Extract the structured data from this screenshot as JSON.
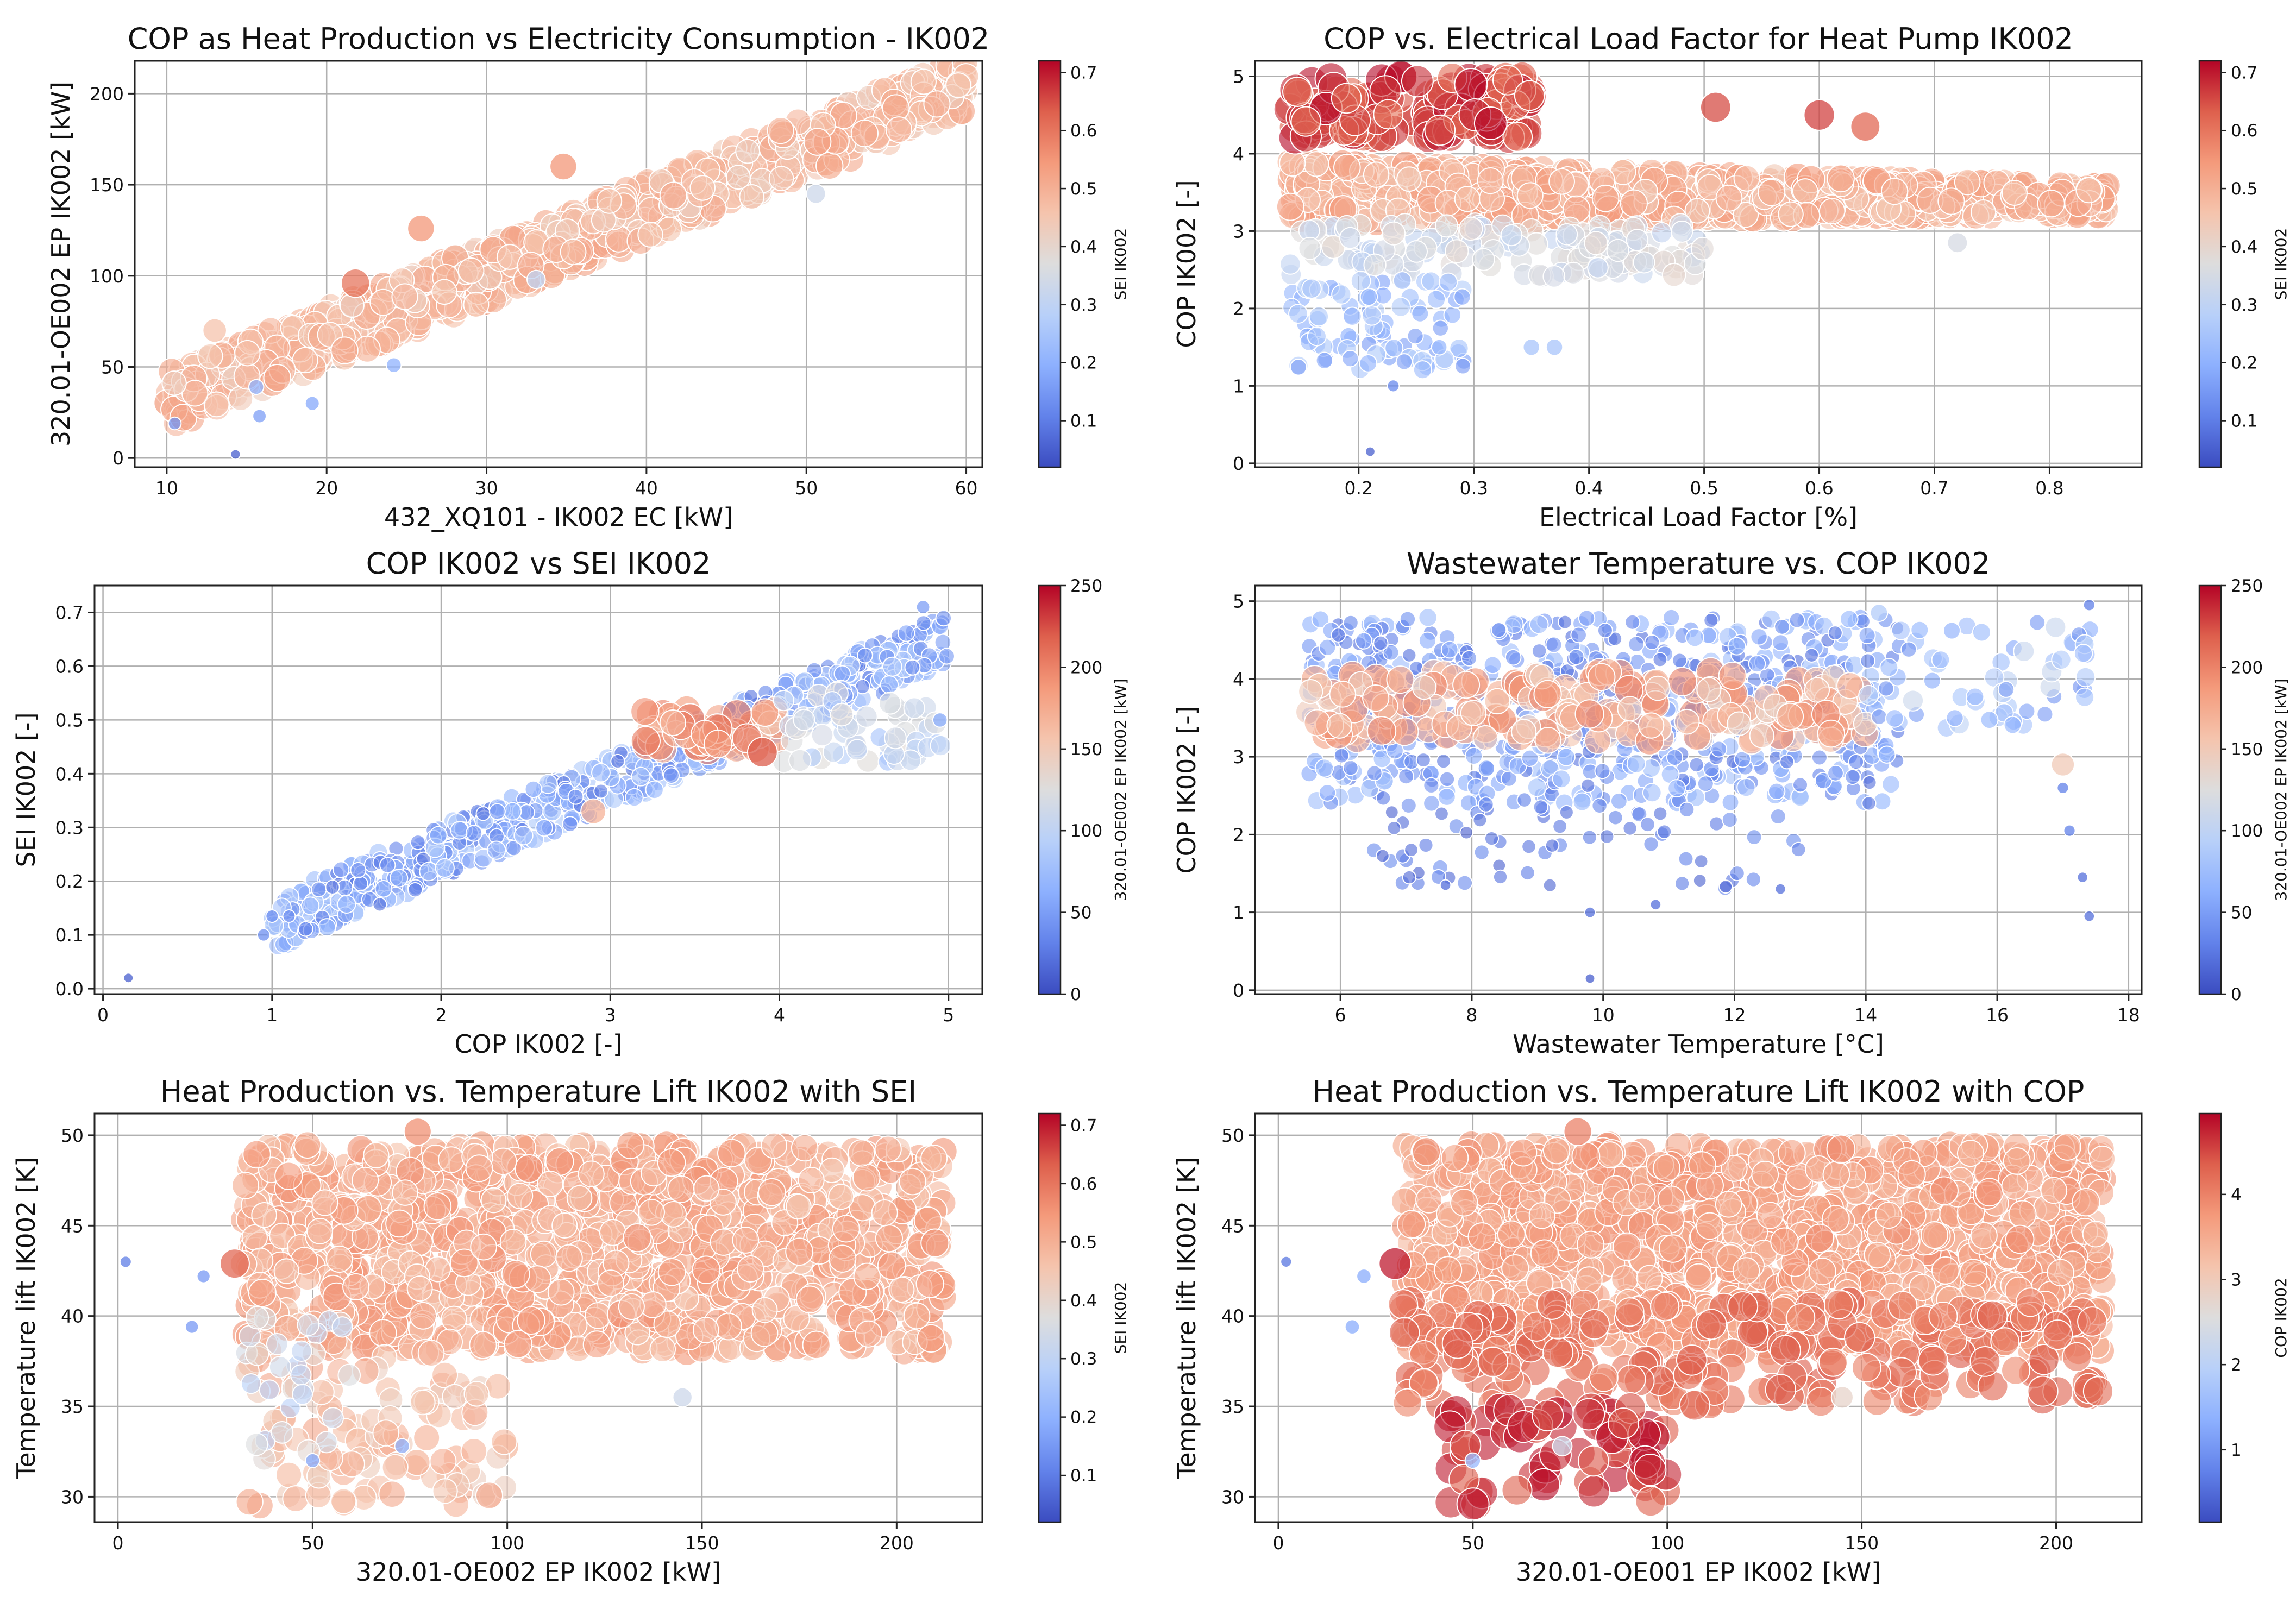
{
  "chart_data": [
    {
      "type": "scatter",
      "title": "COP as Heat Production vs Electricity Consumption - IK002",
      "xlabel": "432_XQ101 - IK002 EC [kW]",
      "ylabel": "320.01-OE002 EP IK002 [kW]",
      "xlim": [
        8,
        61
      ],
      "ylim": [
        -5,
        218
      ],
      "xticks": [
        10,
        20,
        30,
        40,
        50,
        60
      ],
      "yticks": [
        0,
        50,
        100,
        150,
        200
      ],
      "grid": true,
      "colorbar": {
        "label": "SEI IK002",
        "range": [
          0.02,
          0.72
        ],
        "ticks": [
          0.1,
          0.2,
          0.3,
          0.4,
          0.5,
          0.6,
          0.7
        ],
        "cmap": "coolwarm"
      },
      "clusters": [
        {
          "x": [
            10,
            60
          ],
          "y": [
            32,
            205
          ],
          "y_spread": 16,
          "c": [
            0.42,
            0.53
          ],
          "n": 900
        }
      ],
      "points": [
        {
          "x": 10.5,
          "y": 19,
          "c": 0.14
        },
        {
          "x": 14.3,
          "y": 2,
          "c": 0.05
        },
        {
          "x": 15.6,
          "y": 39,
          "c": 0.2
        },
        {
          "x": 15.8,
          "y": 23,
          "c": 0.16
        },
        {
          "x": 19.1,
          "y": 30,
          "c": 0.18
        },
        {
          "x": 24.2,
          "y": 51,
          "c": 0.2
        },
        {
          "x": 25.9,
          "y": 126,
          "c": 0.55
        },
        {
          "x": 33.1,
          "y": 98,
          "c": 0.3
        },
        {
          "x": 50.6,
          "y": 145,
          "c": 0.33
        },
        {
          "x": 21.8,
          "y": 96,
          "c": 0.6
        },
        {
          "x": 34.8,
          "y": 160,
          "c": 0.55
        },
        {
          "x": 13.0,
          "y": 70,
          "c": 0.46
        }
      ]
    },
    {
      "type": "scatter",
      "title": "COP vs. Electrical Load Factor for Heat Pump IK002",
      "xlabel": "Electrical Load Factor [%]",
      "ylabel": "COP IK002 [-]",
      "xlim": [
        0.11,
        0.88
      ],
      "ylim": [
        -0.05,
        5.2
      ],
      "xticks": [
        0.2,
        0.3,
        0.4,
        0.5,
        0.6,
        0.7,
        0.8
      ],
      "yticks": [
        0,
        1,
        2,
        3,
        4,
        5
      ],
      "grid": true,
      "colorbar": {
        "label": "SEI IK002",
        "range": [
          0.02,
          0.72
        ],
        "ticks": [
          0.1,
          0.2,
          0.3,
          0.4,
          0.5,
          0.6,
          0.7
        ],
        "cmap": "coolwarm"
      },
      "clusters": [
        {
          "x": [
            0.14,
            0.85
          ],
          "y": [
            3.1,
            3.9
          ],
          "y_end": [
            3.2,
            3.6
          ],
          "c": [
            0.44,
            0.55
          ],
          "n": 1000
        },
        {
          "x": [
            0.14,
            0.35
          ],
          "y": [
            4.2,
            5.0
          ],
          "c": [
            0.6,
            0.72
          ],
          "n": 160
        },
        {
          "x": [
            0.14,
            0.5
          ],
          "y": [
            2.4,
            3.1
          ],
          "c": [
            0.3,
            0.4
          ],
          "n": 160
        },
        {
          "x": [
            0.14,
            0.3
          ],
          "y": [
            1.2,
            2.4
          ],
          "c": [
            0.15,
            0.28
          ],
          "n": 90
        }
      ],
      "points": [
        {
          "x": 0.21,
          "y": 0.15,
          "c": 0.05
        },
        {
          "x": 0.23,
          "y": 1.0,
          "c": 0.12
        },
        {
          "x": 0.35,
          "y": 1.5,
          "c": 0.25
        },
        {
          "x": 0.37,
          "y": 1.5,
          "c": 0.25
        },
        {
          "x": 0.27,
          "y": 1.5,
          "c": 0.22
        },
        {
          "x": 0.6,
          "y": 4.5,
          "c": 0.66
        },
        {
          "x": 0.64,
          "y": 4.35,
          "c": 0.62
        },
        {
          "x": 0.51,
          "y": 4.6,
          "c": 0.65
        },
        {
          "x": 0.72,
          "y": 2.85,
          "c": 0.35
        }
      ]
    },
    {
      "type": "scatter",
      "title": "COP IK002 vs SEI IK002",
      "xlabel": "COP IK002 [-]",
      "ylabel": "SEI IK002 [-]",
      "xlim": [
        -0.05,
        5.2
      ],
      "ylim": [
        -0.01,
        0.75
      ],
      "xticks": [
        0,
        1,
        2,
        3,
        4,
        5
      ],
      "yticks": [
        0.0,
        0.1,
        0.2,
        0.3,
        0.4,
        0.5,
        0.6,
        0.7
      ],
      "grid": true,
      "colorbar": {
        "label": "320.01-OE002 EP IK002 [kW]",
        "range": [
          0,
          250
        ],
        "ticks": [
          0,
          50,
          100,
          150,
          200,
          250
        ],
        "cmap": "coolwarm"
      },
      "clusters": [
        {
          "x": [
            1.0,
            5.0
          ],
          "y": [
            0.12,
            0.65
          ],
          "y_spread": 0.05,
          "c": [
            20,
            90
          ],
          "n": 700
        },
        {
          "x": [
            3.2,
            4.0
          ],
          "y": [
            0.44,
            0.52
          ],
          "c": [
            150,
            210
          ],
          "n": 60
        },
        {
          "x": [
            4.0,
            5.0
          ],
          "y": [
            0.42,
            0.55
          ],
          "c": [
            80,
            130
          ],
          "n": 60
        }
      ],
      "points": [
        {
          "x": 0.15,
          "y": 0.02,
          "c": 10
        },
        {
          "x": 0.95,
          "y": 0.1,
          "c": 40
        },
        {
          "x": 1.0,
          "y": 0.135,
          "c": 40
        },
        {
          "x": 1.1,
          "y": 0.135,
          "c": 40
        },
        {
          "x": 2.9,
          "y": 0.33,
          "c": 170
        },
        {
          "x": 3.9,
          "y": 0.44,
          "c": 220
        },
        {
          "x": 4.95,
          "y": 0.5,
          "c": 60
        },
        {
          "x": 4.85,
          "y": 0.71,
          "c": 50
        }
      ]
    },
    {
      "type": "scatter",
      "title": "Wastewater Temperature vs. COP IK002",
      "xlabel": "Wastewater Temperature [°C]",
      "ylabel": "COP IK002 [-]",
      "xlim": [
        4.7,
        18.2
      ],
      "ylim": [
        -0.05,
        5.2
      ],
      "xticks": [
        6,
        8,
        10,
        12,
        14,
        16,
        18
      ],
      "yticks": [
        0,
        1,
        2,
        3,
        4,
        5
      ],
      "grid": true,
      "colorbar": {
        "label": "320.01-OE002 EP IK002 [kW]",
        "range": [
          0,
          250
        ],
        "ticks": [
          0,
          50,
          100,
          150,
          200,
          250
        ],
        "cmap": "coolwarm"
      },
      "clusters": [
        {
          "x": [
            5.5,
            14.5
          ],
          "y": [
            2.4,
            4.8
          ],
          "c": [
            20,
            80
          ],
          "n": 700
        },
        {
          "x": [
            5.5,
            14.0
          ],
          "y": [
            3.2,
            4.1
          ],
          "c": [
            140,
            200
          ],
          "n": 220
        },
        {
          "x": [
            6.5,
            13.0
          ],
          "y": [
            1.3,
            2.4
          ],
          "c": [
            10,
            40
          ],
          "n": 70
        },
        {
          "x": [
            14.0,
            17.5
          ],
          "y": [
            3.3,
            4.8
          ],
          "c": [
            40,
            110
          ],
          "n": 60
        }
      ],
      "points": [
        {
          "x": 9.8,
          "y": 0.15,
          "c": 10
        },
        {
          "x": 9.8,
          "y": 1.0,
          "c": 20
        },
        {
          "x": 10.8,
          "y": 1.1,
          "c": 20
        },
        {
          "x": 17.4,
          "y": 0.95,
          "c": 20
        },
        {
          "x": 17.3,
          "y": 1.45,
          "c": 20
        },
        {
          "x": 17.0,
          "y": 2.9,
          "c": 150
        },
        {
          "x": 17.0,
          "y": 2.6,
          "c": 30
        },
        {
          "x": 17.1,
          "y": 2.05,
          "c": 30
        },
        {
          "x": 17.4,
          "y": 4.95,
          "c": 30
        },
        {
          "x": 14.2,
          "y": 4.85,
          "c": 90
        },
        {
          "x": 7.6,
          "y": 1.35,
          "c": 20
        },
        {
          "x": 12.7,
          "y": 1.3,
          "c": 20
        }
      ]
    },
    {
      "type": "scatter",
      "title": "Heat Production vs. Temperature Lift IK002 with SEI",
      "xlabel": "320.01-OE002 EP IK002 [kW]",
      "ylabel": "Temperature lift IK002 [K]",
      "xlim": [
        -6,
        222
      ],
      "ylim": [
        28.6,
        51.2
      ],
      "xticks": [
        0,
        50,
        100,
        150,
        200
      ],
      "yticks": [
        30,
        35,
        40,
        45,
        50
      ],
      "grid": true,
      "colorbar": {
        "label": "SEI IK002",
        "range": [
          0.02,
          0.72
        ],
        "ticks": [
          0.1,
          0.2,
          0.3,
          0.4,
          0.5,
          0.6,
          0.7
        ],
        "cmap": "coolwarm"
      },
      "clusters": [
        {
          "x": [
            32,
            212
          ],
          "y": [
            38,
            49.5
          ],
          "c": [
            0.45,
            0.56
          ],
          "n": 1300
        },
        {
          "x": [
            32,
            100
          ],
          "y": [
            29.5,
            38
          ],
          "c": [
            0.42,
            0.52
          ],
          "n": 110
        },
        {
          "x": [
            32,
            60
          ],
          "y": [
            32,
            40
          ],
          "c": [
            0.28,
            0.4
          ],
          "n": 30
        }
      ],
      "points": [
        {
          "x": 2,
          "y": 43,
          "c": 0.1
        },
        {
          "x": 19,
          "y": 39.4,
          "c": 0.15
        },
        {
          "x": 22,
          "y": 42.2,
          "c": 0.15
        },
        {
          "x": 30,
          "y": 42.9,
          "c": 0.62
        },
        {
          "x": 50,
          "y": 32,
          "c": 0.18
        },
        {
          "x": 73,
          "y": 32.8,
          "c": 0.2
        },
        {
          "x": 145,
          "y": 35.5,
          "c": 0.33
        },
        {
          "x": 77,
          "y": 50.2,
          "c": 0.56
        }
      ]
    },
    {
      "type": "scatter",
      "title": "Heat Production vs. Temperature Lift IK002 with COP",
      "xlabel": "320.01-OE001 EP IK002 [kW]",
      "ylabel": "Temperature lift IK002 [K]",
      "xlim": [
        -6,
        222
      ],
      "ylim": [
        28.6,
        51.2
      ],
      "xticks": [
        0,
        50,
        100,
        150,
        200
      ],
      "yticks": [
        30,
        35,
        40,
        45,
        50
      ],
      "grid": true,
      "colorbar": {
        "label": "COP IK002",
        "range": [
          0.15,
          4.95
        ],
        "ticks": [
          1,
          2,
          3,
          4
        ],
        "cmap": "coolwarm"
      },
      "clusters": [
        {
          "x": [
            32,
            212
          ],
          "y": [
            38,
            49.5
          ],
          "c": [
            3.3,
            3.9
          ],
          "n": 1300
        },
        {
          "x": [
            32,
            212
          ],
          "y": [
            35,
            41
          ],
          "c": [
            3.9,
            4.4
          ],
          "n": 220
        },
        {
          "x": [
            44,
            100
          ],
          "y": [
            29.5,
            35
          ],
          "c": [
            4.3,
            4.9
          ],
          "n": 70
        }
      ],
      "points": [
        {
          "x": 2,
          "y": 43,
          "c": 0.6
        },
        {
          "x": 19,
          "y": 39.4,
          "c": 1.3
        },
        {
          "x": 22,
          "y": 42.2,
          "c": 1.3
        },
        {
          "x": 30,
          "y": 42.9,
          "c": 4.8
        },
        {
          "x": 50,
          "y": 32,
          "c": 1.5
        },
        {
          "x": 73,
          "y": 32.8,
          "c": 2.3
        },
        {
          "x": 145,
          "y": 35.5,
          "c": 2.8
        },
        {
          "x": 77,
          "y": 50.2,
          "c": 4.0
        }
      ]
    }
  ]
}
